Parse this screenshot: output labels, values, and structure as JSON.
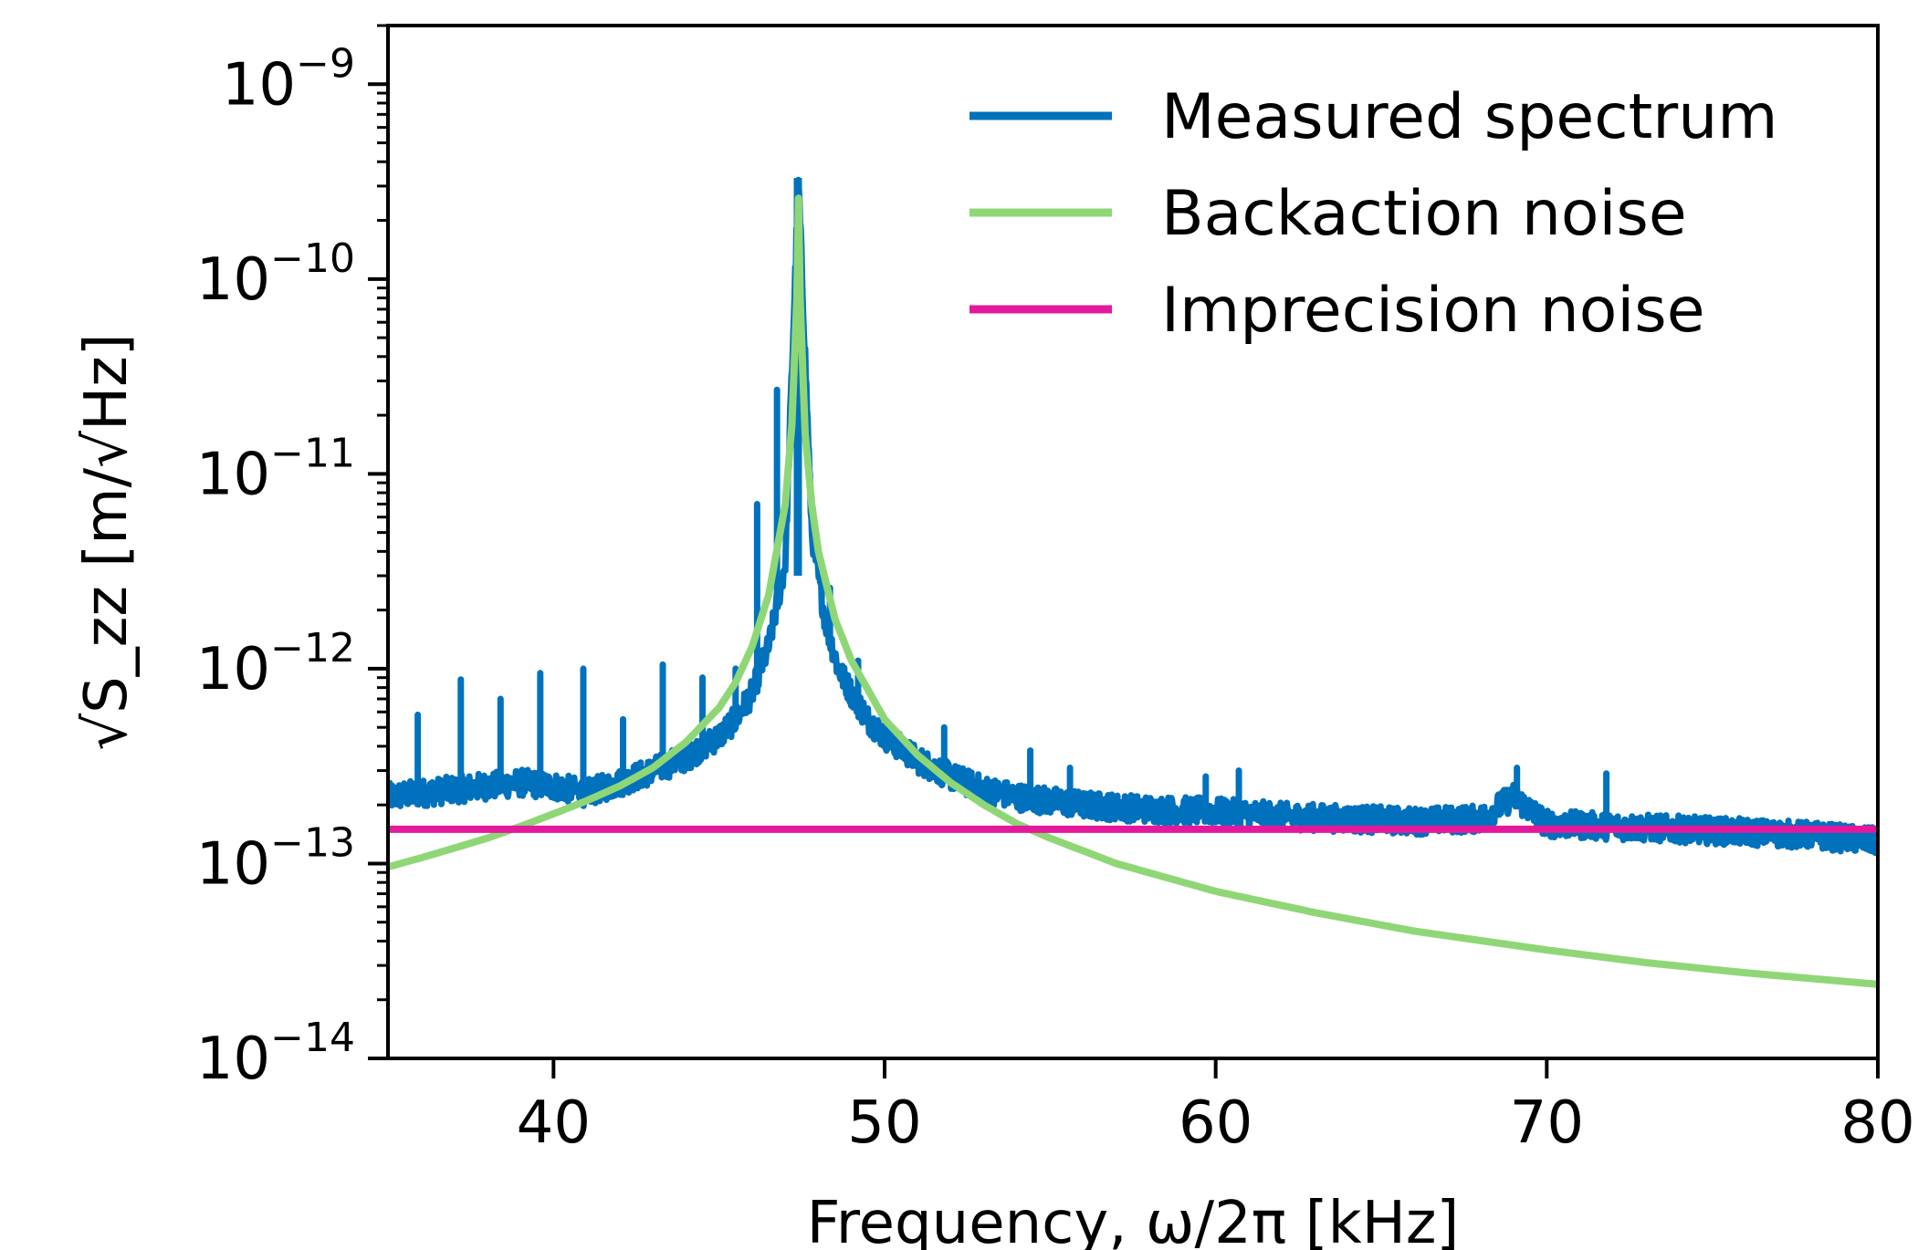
{
  "chart_data": {
    "type": "line",
    "title": "",
    "xlabel": "Frequency, ω/2π [kHz]",
    "ylabel": "√S_zz [m/√Hz]",
    "xlim": [
      35,
      80
    ],
    "ylim": [
      1e-14,
      2e-09
    ],
    "yscale": "log",
    "grid": false,
    "legend_position": "top-right",
    "x_ticks": [
      40,
      50,
      60,
      70,
      80
    ],
    "y_ticks": [
      {
        "value": 1e-14,
        "base": "10",
        "exp": "−14"
      },
      {
        "value": 1e-13,
        "base": "10",
        "exp": "−13"
      },
      {
        "value": 1e-12,
        "base": "10",
        "exp": "−12"
      },
      {
        "value": 1e-11,
        "base": "10",
        "exp": "−11"
      },
      {
        "value": 1e-10,
        "base": "10",
        "exp": "−10"
      },
      {
        "value": 1e-09,
        "base": "10",
        "exp": "−9"
      }
    ],
    "series": [
      {
        "name": "Measured spectrum",
        "color": "#0072bd",
        "x": [
          35.0,
          36.0,
          37.0,
          38.0,
          39.0,
          40.0,
          41.0,
          42.0,
          43.0,
          44.0,
          45.0,
          45.5,
          46.0,
          46.5,
          47.0,
          47.4,
          47.8,
          48.2,
          48.6,
          49.0,
          49.5,
          50.0,
          51.0,
          52.0,
          53.0,
          54.0,
          55.0,
          56.0,
          58.0,
          60.0,
          62.0,
          64.0,
          66.0,
          68.0,
          69.0,
          70.0,
          72.0,
          74.0,
          76.0,
          78.0,
          80.0
        ],
        "y": [
          2.2e-13,
          2.3e-13,
          2.4e-13,
          2.5e-13,
          2.6e-13,
          2.5e-13,
          2.3e-13,
          2.6e-13,
          3e-13,
          3.5e-13,
          4.5e-13,
          5.5e-13,
          7.5e-13,
          1.3e-12,
          3.5e-12,
          3.2e-10,
          5e-12,
          1.8e-12,
          1e-12,
          7.5e-13,
          5.5e-13,
          4.5e-13,
          3.4e-13,
          2.8e-13,
          2.4e-13,
          2.2e-13,
          2.1e-13,
          2e-13,
          1.9e-13,
          1.85e-13,
          1.75e-13,
          1.7e-13,
          1.65e-13,
          1.7e-13,
          2.2e-13,
          1.6e-13,
          1.55e-13,
          1.5e-13,
          1.45e-13,
          1.4e-13,
          1.3e-13
        ],
        "spikes": [
          {
            "x": 35.9,
            "y": 5.8e-13
          },
          {
            "x": 37.2,
            "y": 8.8e-13
          },
          {
            "x": 38.4,
            "y": 7e-13
          },
          {
            "x": 39.6,
            "y": 9.5e-13
          },
          {
            "x": 40.9,
            "y": 1e-12
          },
          {
            "x": 42.1,
            "y": 5.5e-13
          },
          {
            "x": 43.3,
            "y": 1.05e-12
          },
          {
            "x": 44.5,
            "y": 9e-13
          },
          {
            "x": 45.5,
            "y": 1e-12
          },
          {
            "x": 46.15,
            "y": 7e-12
          },
          {
            "x": 46.75,
            "y": 2.7e-11
          },
          {
            "x": 48.1,
            "y": 3e-12
          },
          {
            "x": 48.35,
            "y": 2.6e-12
          },
          {
            "x": 49.2,
            "y": 1.1e-12
          },
          {
            "x": 51.8,
            "y": 5e-13
          },
          {
            "x": 54.4,
            "y": 3.8e-13
          },
          {
            "x": 55.6,
            "y": 3.1e-13
          },
          {
            "x": 59.7,
            "y": 2.8e-13
          },
          {
            "x": 60.7,
            "y": 3e-13
          },
          {
            "x": 69.1,
            "y": 3.1e-13
          },
          {
            "x": 71.8,
            "y": 2.9e-13
          }
        ]
      },
      {
        "name": "Backaction noise",
        "color": "#8fd776",
        "x": [
          35,
          36,
          37,
          38,
          39,
          40,
          41,
          42,
          43,
          44,
          45,
          45.5,
          46,
          46.5,
          47,
          47.2,
          47.35,
          47.4,
          47.45,
          47.6,
          47.8,
          48,
          48.5,
          49,
          50,
          51,
          52,
          53,
          54,
          55,
          57,
          60,
          63,
          66,
          70,
          73,
          76,
          80
        ],
        "y": [
          9.6e-14,
          1.07e-13,
          1.2e-13,
          1.35e-13,
          1.55e-13,
          1.8e-13,
          2.1e-13,
          2.5e-13,
          3.1e-13,
          4.2e-13,
          6.3e-13,
          8.5e-13,
          1.3e-12,
          2.4e-12,
          7e-12,
          1.8e-11,
          8e-11,
          2.6e-10,
          8e-11,
          1.6e-11,
          7e-12,
          4e-12,
          1.8e-12,
          1.1e-12,
          5.5e-13,
          3.6e-13,
          2.6e-13,
          2e-13,
          1.6e-13,
          1.35e-13,
          1e-13,
          7.2e-14,
          5.6e-14,
          4.5e-14,
          3.6e-14,
          3.1e-14,
          2.75e-14,
          2.4e-14
        ]
      },
      {
        "name": "Imprecision noise",
        "color": "#e3199c",
        "x": [
          35,
          80
        ],
        "y": [
          1.5e-13,
          1.5e-13
        ]
      }
    ]
  }
}
